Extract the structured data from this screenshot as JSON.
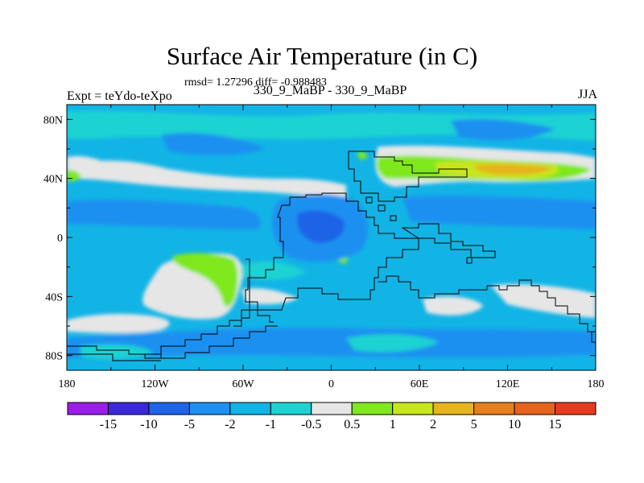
{
  "chart_data": {
    "type": "heatmap",
    "title": "Surface Air Temperature (in C)",
    "stats_line": "rmsd= 1.27296 diff= -0.988483",
    "left_label": "Expt = teYdo-teXpo",
    "center_label": "330_9_MaBP - 330_9_MaBP",
    "right_label": "JJA",
    "x_ticks": [
      "180",
      "120W",
      "60W",
      "0",
      "60E",
      "120E",
      "180"
    ],
    "y_ticks": [
      "80N",
      "40N",
      "0",
      "40S",
      "80S"
    ],
    "xlim": [
      -180,
      180
    ],
    "ylim": [
      -90,
      90
    ],
    "x_tick_values": [
      -180,
      -120,
      -60,
      0,
      60,
      120,
      180
    ],
    "y_tick_values": [
      80,
      40,
      0,
      -40,
      -80
    ],
    "colorbar": {
      "levels": [
        "-15",
        "-10",
        "-5",
        "-2",
        "-1",
        "-0.5",
        "0.5",
        "1",
        "2",
        "5",
        "10",
        "15"
      ],
      "colors": [
        "#9a1ee6",
        "#3b28d8",
        "#1f64e6",
        "#1e90f0",
        "#12b4e6",
        "#1ed2d2",
        "#e6e6e6",
        "#7fe81e",
        "#c8e61e",
        "#e6b41e",
        "#e67f1e",
        "#e6641e",
        "#e63c1e"
      ]
    },
    "field_colors": {
      "background": "#12b4e6",
      "cold": "#1e90f0",
      "colder": "#1f64e6",
      "cool": "#1ed2d2",
      "neutral": "#e6e6e6",
      "warm": "#7fe81e",
      "warmer": "#c8e61e",
      "hot": "#e6b41e"
    }
  }
}
